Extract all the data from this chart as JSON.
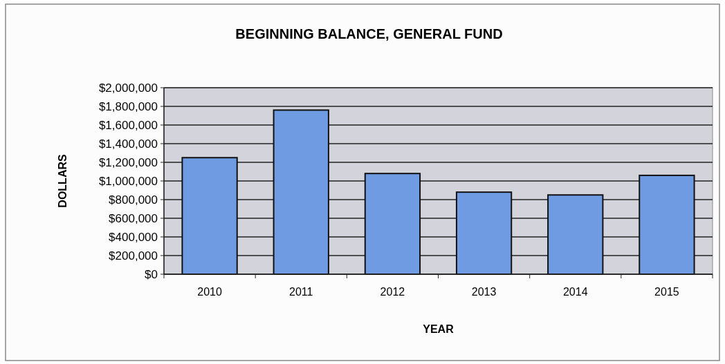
{
  "chart_data": {
    "type": "bar",
    "title": "BEGINNING BALANCE, GENERAL FUND",
    "xlabel": "YEAR",
    "ylabel": "DOLLARS",
    "categories": [
      "2010",
      "2011",
      "2012",
      "2013",
      "2014",
      "2015"
    ],
    "values": [
      1250000,
      1760000,
      1080000,
      880000,
      850000,
      1060000
    ],
    "color": "#6f9be3",
    "ylim": [
      0,
      2000000
    ],
    "yticks": [
      {
        "value": 0,
        "label": "$0"
      },
      {
        "value": 200000,
        "label": "$200,000"
      },
      {
        "value": 400000,
        "label": "$400,000"
      },
      {
        "value": 600000,
        "label": "$600,000"
      },
      {
        "value": 800000,
        "label": "$800,000"
      },
      {
        "value": 1000000,
        "label": "$1,000,000"
      },
      {
        "value": 1200000,
        "label": "$1,200,000"
      },
      {
        "value": 1400000,
        "label": "$1,400,000"
      },
      {
        "value": 1600000,
        "label": "$1,600,000"
      },
      {
        "value": 1800000,
        "label": "$1,800,000"
      },
      {
        "value": 2000000,
        "label": "$2,000,000"
      }
    ],
    "grid": "y"
  }
}
